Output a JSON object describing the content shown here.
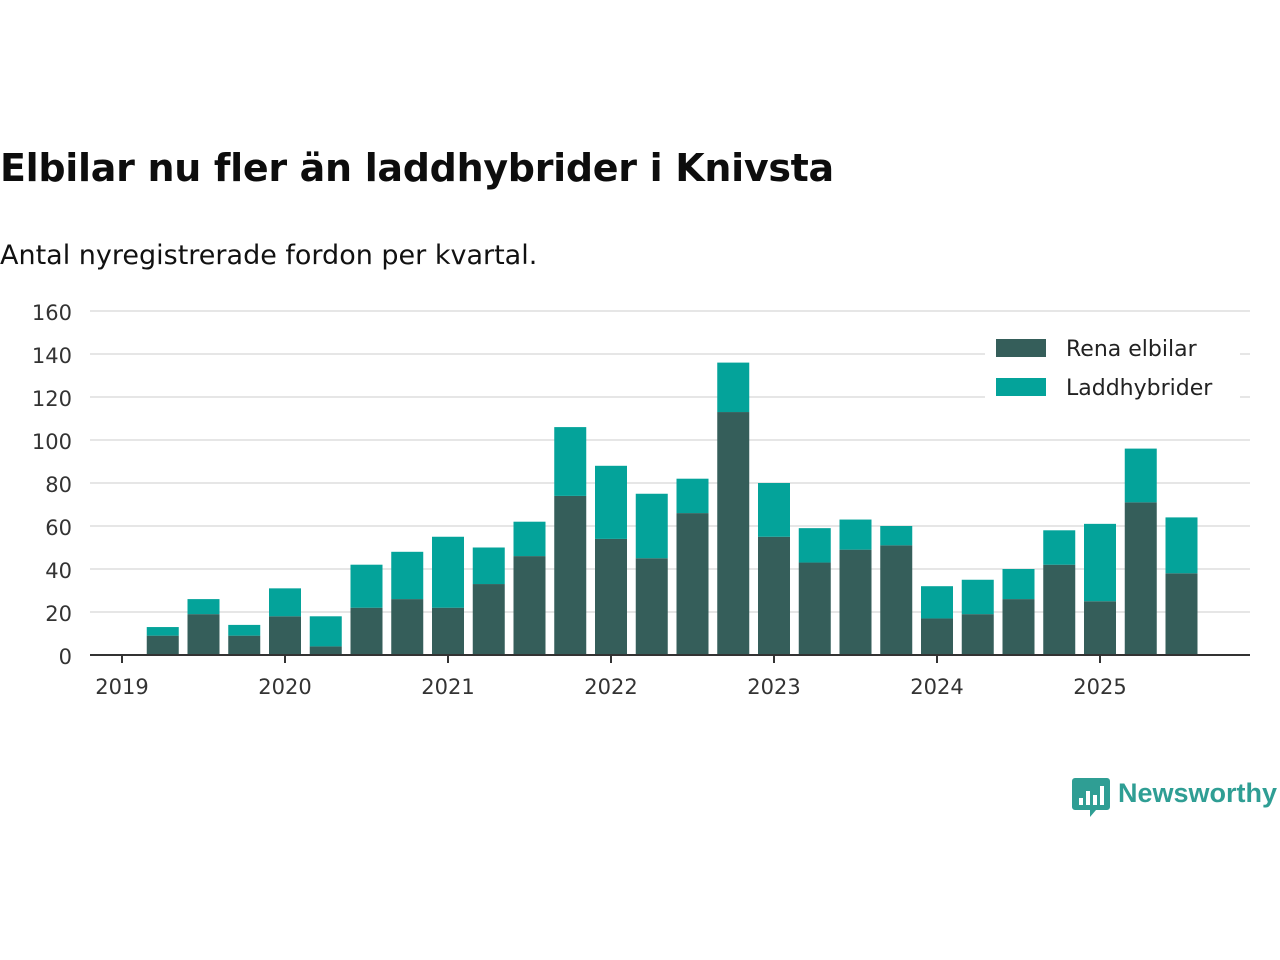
{
  "title": "Elbilar nu fler än laddhybrider i Knivsta",
  "subtitle": "Antal nyregistrerade fordon per kvartal.",
  "brand": "Newsworthy",
  "colors": {
    "series1": "#355e5a",
    "series2": "#04a39a",
    "grid": "#dddddd",
    "axis": "#333333",
    "brand": "#2f9e94"
  },
  "chart_data": {
    "type": "bar",
    "stacked": true,
    "title": "Elbilar nu fler än laddhybrider i Knivsta",
    "subtitle": "Antal nyregistrerade fordon per kvartal.",
    "xlabel": "",
    "ylabel": "",
    "ylim": [
      0,
      160
    ],
    "yticks": [
      0,
      20,
      40,
      60,
      80,
      100,
      120,
      140,
      160
    ],
    "xticks": [
      "2019",
      "2020",
      "2021",
      "2022",
      "2023",
      "2024",
      "2025"
    ],
    "categories": [
      "2019 Q2",
      "2019 Q3",
      "2019 Q4",
      "2020 Q1",
      "2020 Q2",
      "2020 Q3",
      "2020 Q4",
      "2021 Q1",
      "2021 Q2",
      "2021 Q3",
      "2021 Q4",
      "2022 Q1",
      "2022 Q2",
      "2022 Q3",
      "2022 Q4",
      "2023 Q1",
      "2023 Q2",
      "2023 Q3",
      "2023 Q4",
      "2024 Q1",
      "2024 Q2",
      "2024 Q3",
      "2024 Q4",
      "2025 Q1",
      "2025 Q2",
      "2025 Q3"
    ],
    "legend_position": "top-right",
    "grid": true,
    "series": [
      {
        "name": "Rena elbilar",
        "values": [
          9,
          19,
          9,
          18,
          4,
          22,
          26,
          22,
          33,
          46,
          74,
          54,
          45,
          66,
          113,
          55,
          43,
          49,
          51,
          17,
          19,
          26,
          42,
          25,
          71,
          38
        ]
      },
      {
        "name": "Laddhybrider",
        "values": [
          4,
          7,
          5,
          13,
          14,
          20,
          22,
          33,
          17,
          16,
          32,
          34,
          30,
          16,
          23,
          25,
          16,
          14,
          9,
          15,
          16,
          14,
          16,
          36,
          25,
          26
        ]
      }
    ]
  }
}
